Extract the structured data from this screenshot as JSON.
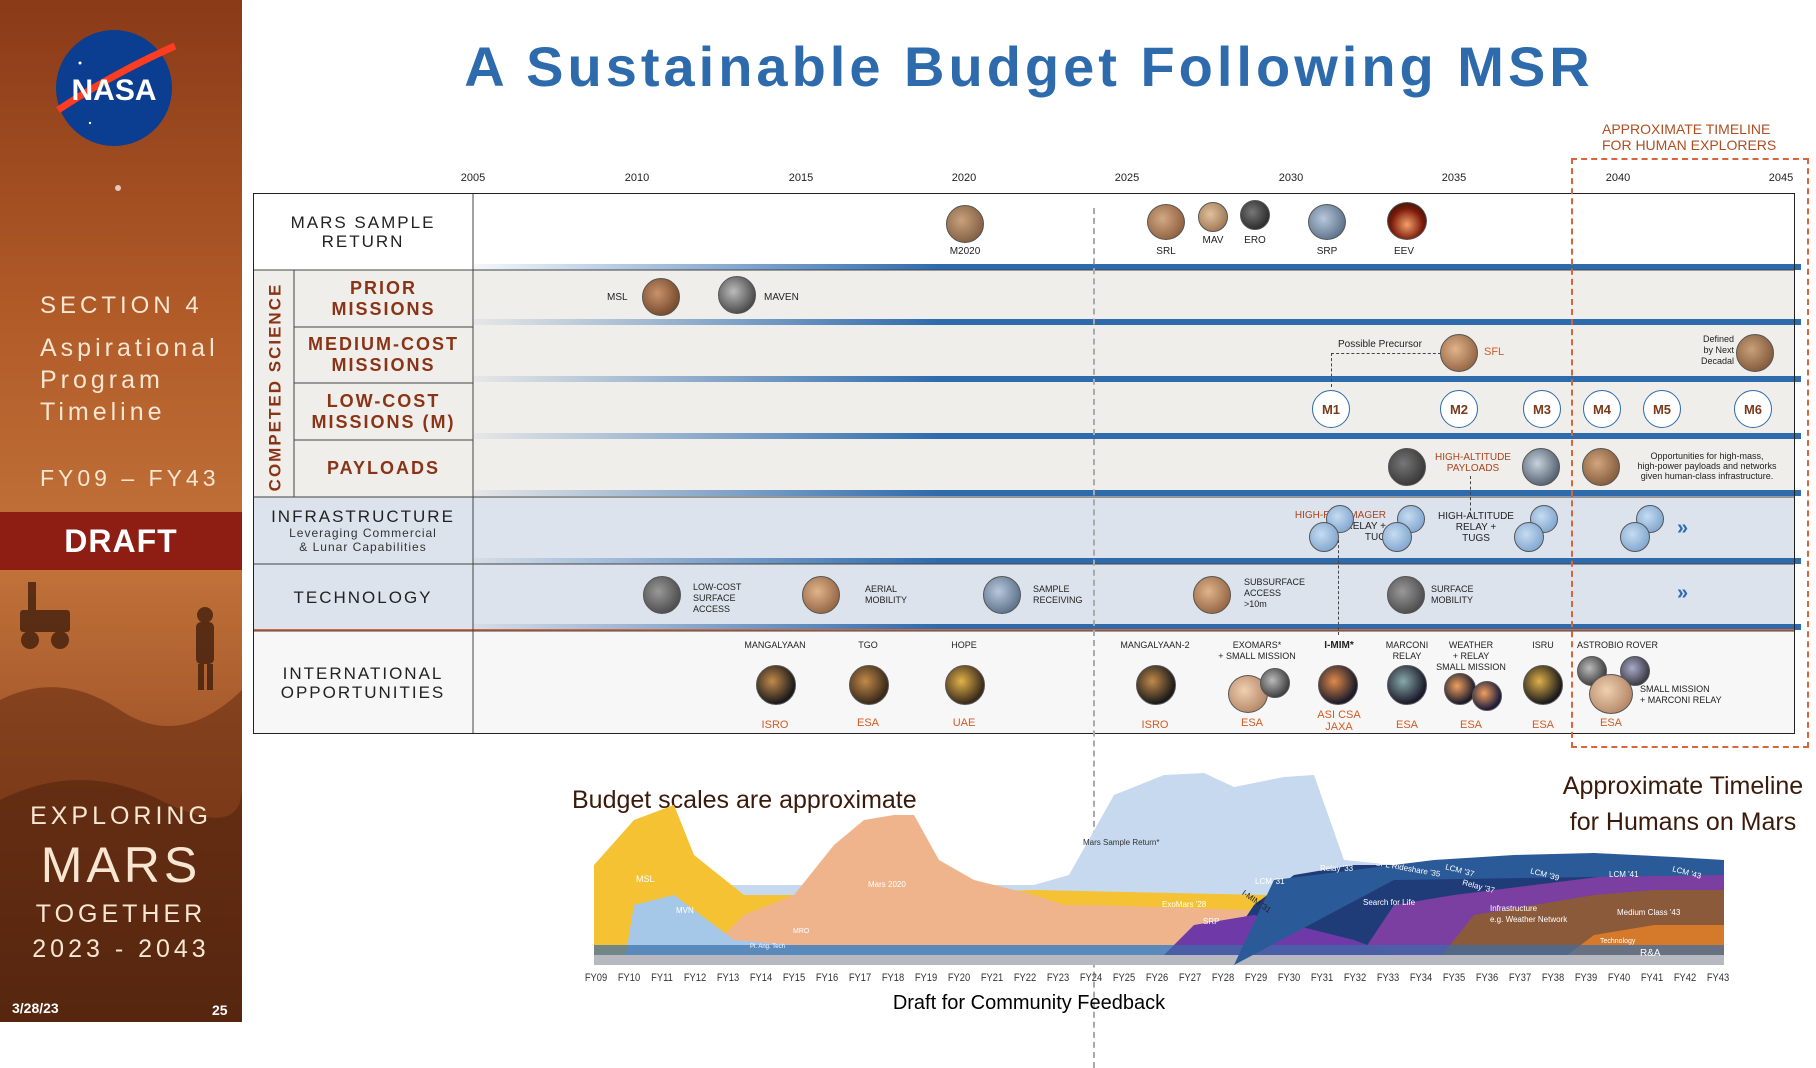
{
  "sidebar": {
    "logo_text": "NASA",
    "section": "SECTION 4",
    "subtitle_lines": [
      "Aspirational",
      "Program",
      "Timeline"
    ],
    "fy_range": "FY09 – FY43",
    "draft": "DRAFT",
    "exploring": "EXPLORING",
    "mars": "MARS",
    "together": "TOGETHER",
    "years": "2023 - 2043",
    "date": "3/28/23",
    "page": "25"
  },
  "title": "A Sustainable Budget Following MSR",
  "human_timeline_note": [
    "APPROXIMATE TIMELINE",
    "FOR HUMAN EXPLORERS"
  ],
  "years": [
    "2005",
    "2010",
    "2015",
    "2020",
    "2025",
    "2030",
    "2035",
    "2040",
    "2045"
  ],
  "competed_science": "COMPETED SCIENCE",
  "rows": {
    "msr": {
      "label_lines": [
        "MARS SAMPLE",
        "RETURN"
      ],
      "items": [
        "M2020",
        "SRL",
        "MAV",
        "ERO",
        "SRP",
        "EEV"
      ]
    },
    "prior": {
      "label_lines": [
        "PRIOR",
        "MISSIONS"
      ],
      "items": [
        "MSL",
        "MAVEN"
      ]
    },
    "medium": {
      "label_lines": [
        "MEDIUM-COST",
        "MISSIONS"
      ],
      "precursor": "Possible Precursor",
      "sfl": "SFL",
      "defined": [
        "Defined",
        "by Next",
        "Decadal"
      ]
    },
    "low": {
      "label_lines": [
        "LOW-COST",
        "MISSIONS (M)"
      ],
      "items": [
        "M1",
        "M2",
        "M3",
        "M4",
        "M5",
        "M6"
      ]
    },
    "payloads": {
      "label": "PAYLOADS",
      "high_alt": [
        "HIGH-ALTITUDE",
        "PAYLOADS"
      ],
      "opportunities": [
        "Opportunities for high-mass,",
        "high-power payloads and networks",
        "given human-class infrastructure."
      ]
    },
    "infrastructure": {
      "label": "INFRASTRUCTURE",
      "sub_lines": [
        "Leveraging Commercial",
        "& Lunar Capabilities"
      ],
      "hires": [
        "HIGH-RES IMAGER",
        "RELAY +",
        "TUG"
      ],
      "highalt_relay": [
        "HIGH-ALTITUDE",
        "RELAY +",
        "TUGS"
      ],
      "chev": "»"
    },
    "technology": {
      "label": "TECHNOLOGY",
      "items": [
        [
          "LOW-COST",
          "SURFACE",
          "ACCESS"
        ],
        [
          "AERIAL",
          "MOBILITY"
        ],
        [
          "SAMPLE",
          "RECEIVING"
        ],
        [
          "SUBSURFACE",
          "ACCESS",
          ">10m"
        ],
        [
          "SURFACE",
          "MOBILITY"
        ]
      ],
      "chev": "»"
    },
    "international": {
      "label_lines": [
        "INTERNATIONAL",
        "OPPORTUNITIES"
      ],
      "missions": [
        {
          "name": [
            "MANGALYAAN"
          ],
          "org": [
            "ISRO"
          ]
        },
        {
          "name": [
            "TGO"
          ],
          "org": [
            "ESA"
          ]
        },
        {
          "name": [
            "HOPE"
          ],
          "org": [
            "UAE"
          ]
        },
        {
          "name": [
            "MANGALYAAN-2"
          ],
          "org": [
            "ISRO"
          ]
        },
        {
          "name": [
            "EXOMARS*",
            "+ SMALL MISSION"
          ],
          "org": [
            "ESA"
          ]
        },
        {
          "name": [
            "I-MIM*"
          ],
          "org": [
            "ASI CSA",
            "JAXA"
          ]
        },
        {
          "name": [
            "MARCONI",
            "RELAY"
          ],
          "org": [
            "ESA"
          ]
        },
        {
          "name": [
            "WEATHER",
            "+ RELAY",
            "SMALL MISSION"
          ],
          "org": [
            "ESA"
          ]
        },
        {
          "name": [
            "ISRU"
          ],
          "org": [
            "ESA"
          ]
        },
        {
          "name": [
            "ASTROBIO ROVER"
          ],
          "org": [
            "ESA"
          ]
        }
      ],
      "small_mission": [
        "SMALL MISSION",
        "+ MARCONI RELAY"
      ]
    }
  },
  "budget": {
    "note": "Budget scales are approximate",
    "human_note": [
      "Approximate Timeline",
      "for Humans on Mars"
    ],
    "footer": "Draft for Community Feedback",
    "fiscal_years": [
      "FY09",
      "FY10",
      "FY11",
      "FY12",
      "FY13",
      "FY14",
      "FY15",
      "FY16",
      "FY17",
      "FY18",
      "FY19",
      "FY20",
      "FY21",
      "FY22",
      "FY23",
      "FY24",
      "FY25",
      "FY26",
      "FY27",
      "FY28",
      "FY29",
      "FY30",
      "FY31",
      "FY32",
      "FY33",
      "FY34",
      "FY35",
      "FY36",
      "FY37",
      "FY38",
      "FY39",
      "FY40",
      "FY41",
      "FY42",
      "FY43"
    ],
    "area_labels": [
      "MSL",
      "MVN",
      "Mars 2020",
      "Mars Sample Return*",
      "ExoMars '28",
      "SRP",
      "I-MIM '31",
      "LCM '31",
      "Relay '33",
      "SFL Rideshare '35",
      "LCM '37",
      "Relay '37",
      "LCM '39",
      "LCM '41",
      "LCM '43",
      "Search for Life",
      "Infrastructure",
      "e.g. Weather Network",
      "Medium Class '43",
      "R&A",
      "Technology",
      "MRO",
      "Pl. Ang. Tech"
    ]
  }
}
